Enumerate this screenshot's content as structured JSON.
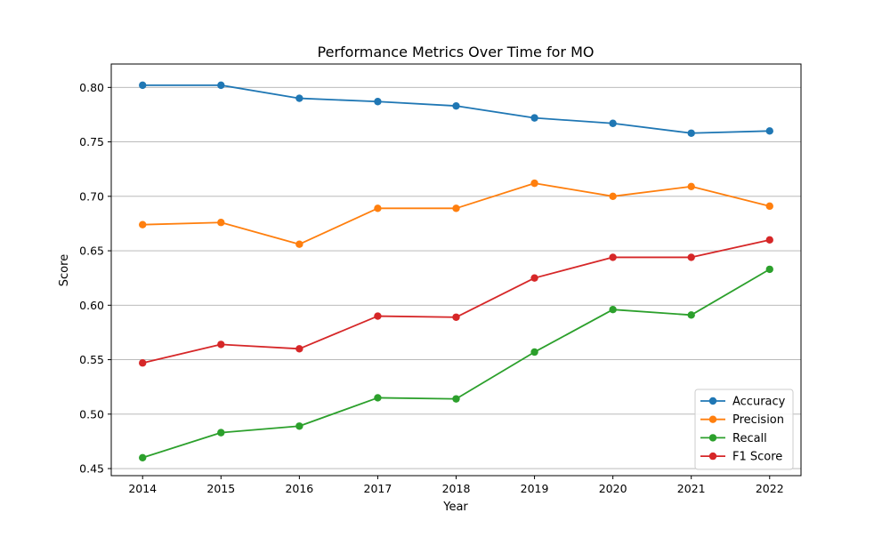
{
  "chart_data": {
    "type": "line",
    "title": "Performance Metrics Over Time for MO",
    "xlabel": "Year",
    "ylabel": "Score",
    "x": [
      2014,
      2015,
      2016,
      2017,
      2018,
      2019,
      2020,
      2021,
      2022
    ],
    "x_tick_labels": [
      "2014",
      "2015",
      "2016",
      "2017",
      "2018",
      "2019",
      "2020",
      "2021",
      "2022"
    ],
    "xlim": [
      2013.6,
      2022.4
    ],
    "ylim": [
      0.4435,
      0.8215
    ],
    "y_ticks": [
      0.45,
      0.5,
      0.55,
      0.6,
      0.65,
      0.7,
      0.75,
      0.8
    ],
    "y_tick_labels": [
      "0.45",
      "0.50",
      "0.55",
      "0.60",
      "0.65",
      "0.70",
      "0.75",
      "0.80"
    ],
    "grid": "horizontal",
    "legend_position": "lower-right",
    "series": [
      {
        "name": "Accuracy",
        "color": "#1f77b4",
        "values": [
          0.802,
          0.802,
          0.79,
          0.787,
          0.783,
          0.772,
          0.767,
          0.758,
          0.76
        ]
      },
      {
        "name": "Precision",
        "color": "#ff7f0e",
        "values": [
          0.674,
          0.676,
          0.656,
          0.689,
          0.689,
          0.712,
          0.7,
          0.709,
          0.691
        ]
      },
      {
        "name": "Recall",
        "color": "#2ca02c",
        "values": [
          0.46,
          0.483,
          0.489,
          0.515,
          0.514,
          0.557,
          0.596,
          0.591,
          0.633
        ]
      },
      {
        "name": "F1 Score",
        "color": "#d62728",
        "values": [
          0.547,
          0.564,
          0.56,
          0.59,
          0.589,
          0.625,
          0.644,
          0.644,
          0.66
        ]
      }
    ]
  }
}
